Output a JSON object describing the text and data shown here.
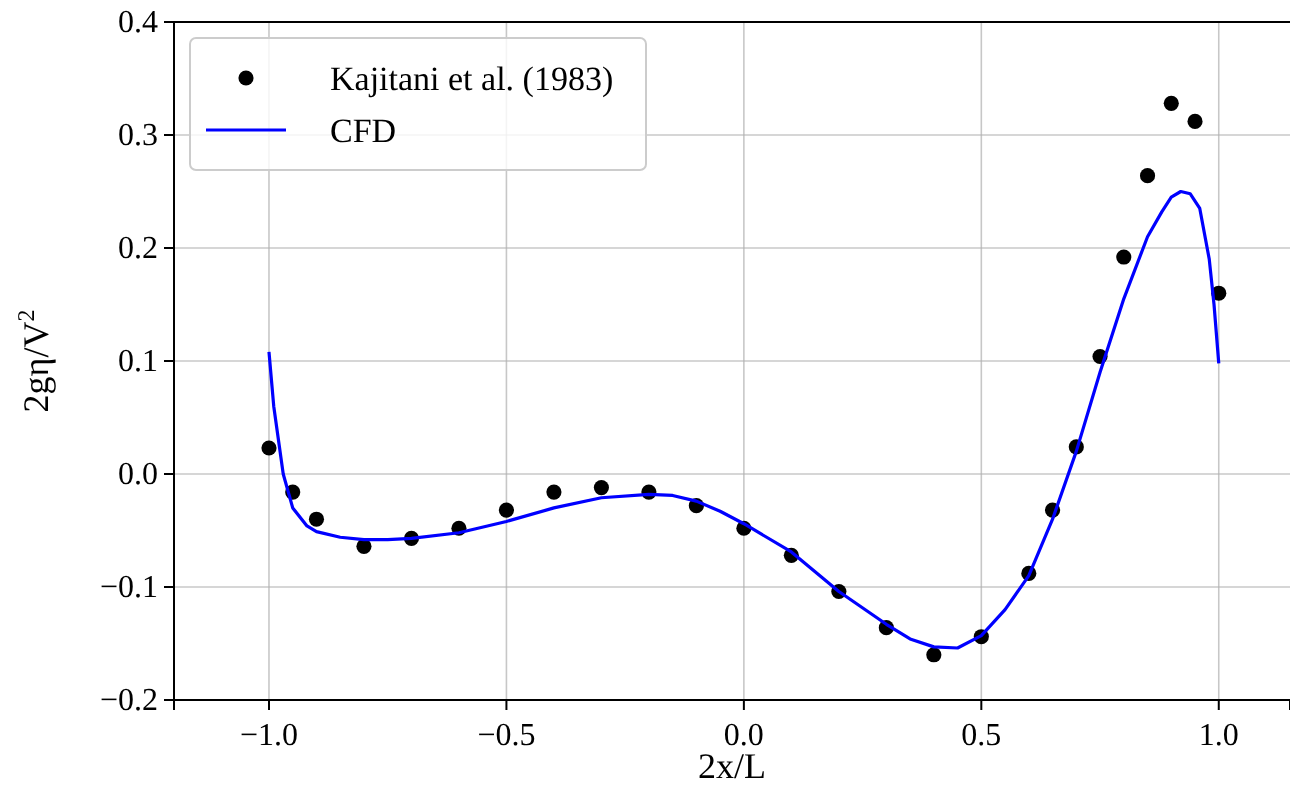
{
  "chart_data": {
    "type": "scatter",
    "xlabel": "2x/L",
    "ylabel": "2gη/V$^{2}$",
    "xlim": [
      -1.2,
      1.15
    ],
    "ylim": [
      -0.2,
      0.4
    ],
    "xticks": [
      {
        "value": -1,
        "label": "−1.0"
      },
      {
        "value": -0.5,
        "label": "−0.5"
      },
      {
        "value": 0,
        "label": "0.0"
      },
      {
        "value": 0.5,
        "label": "0.5"
      },
      {
        "value": 1,
        "label": "1.0"
      }
    ],
    "yticks": [
      {
        "value": -0.2,
        "label": "−0.2"
      },
      {
        "value": -0.1,
        "label": "−0.1"
      },
      {
        "value": 0,
        "label": "0.0"
      },
      {
        "value": 0.1,
        "label": "0.1"
      },
      {
        "value": 0.2,
        "label": "0.2"
      },
      {
        "value": 0.3,
        "label": "0.3"
      },
      {
        "value": 0.4,
        "label": "0.4"
      }
    ],
    "grid": true,
    "legend": "top left",
    "series": [
      {
        "name": "Kajitani et al. (1983)",
        "marker": "circle",
        "color": "#000000",
        "x": [
          -1,
          -0.95,
          -0.9,
          -0.8,
          -0.7,
          -0.6,
          -0.5,
          -0.4,
          -0.3,
          -0.2,
          -0.1,
          0,
          0.1,
          0.2,
          0.3,
          0.4,
          0.5,
          0.6,
          0.65,
          0.7,
          0.75,
          0.8,
          0.85,
          0.9,
          0.95,
          1
        ],
        "values": [
          0.023,
          -0.016,
          -0.04,
          -0.064,
          -0.057,
          -0.048,
          -0.032,
          -0.016,
          -0.012,
          -0.016,
          -0.028,
          -0.048,
          -0.072,
          -0.104,
          -0.136,
          -0.16,
          -0.144,
          -0.088,
          -0.032,
          0.024,
          0.104,
          0.192,
          0.264,
          0.328,
          0.312,
          0.16
        ]
      },
      {
        "name": "CFD",
        "type": "line",
        "marker": "none",
        "line_style": "solid",
        "color": "#0000ff",
        "x": [
          -1,
          -0.99,
          -0.97,
          -0.95,
          -0.92,
          -0.9,
          -0.85,
          -0.8,
          -0.75,
          -0.7,
          -0.6,
          -0.5,
          -0.4,
          -0.3,
          -0.2,
          -0.15,
          -0.1,
          -0.05,
          0,
          0.1,
          0.2,
          0.3,
          0.35,
          0.4,
          0.45,
          0.5,
          0.55,
          0.6,
          0.65,
          0.7,
          0.75,
          0.8,
          0.85,
          0.88,
          0.9,
          0.92,
          0.94,
          0.96,
          0.98,
          0.99,
          1
        ],
        "values": [
          0.108,
          0.06,
          0.0,
          -0.03,
          -0.046,
          -0.051,
          -0.056,
          -0.058,
          -0.058,
          -0.057,
          -0.052,
          -0.042,
          -0.03,
          -0.021,
          -0.018,
          -0.019,
          -0.024,
          -0.033,
          -0.044,
          -0.069,
          -0.104,
          -0.133,
          -0.146,
          -0.153,
          -0.154,
          -0.143,
          -0.12,
          -0.09,
          -0.04,
          0.02,
          0.09,
          0.155,
          0.21,
          0.232,
          0.245,
          0.25,
          0.248,
          0.235,
          0.19,
          0.15,
          0.098
        ]
      }
    ]
  }
}
